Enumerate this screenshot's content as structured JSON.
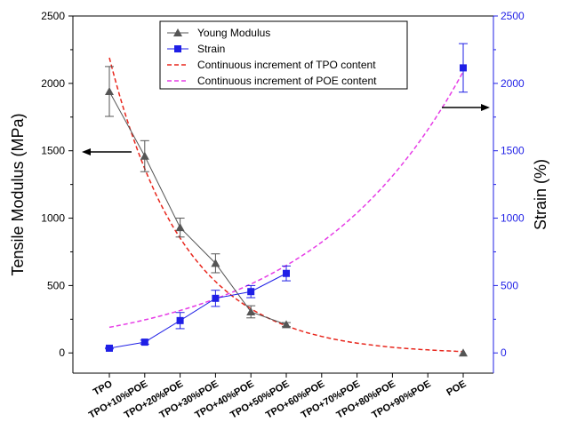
{
  "chart_data": {
    "type": "line",
    "categories": [
      "TPO",
      "TPO+10%POE",
      "TPO+20%POE",
      "TPO+30%POE",
      "TPO+40%POE",
      "TPO+50%POE",
      "TPO+60%POE",
      "TPO+70%POE",
      "TPO+80%POE",
      "TPO+90%POE",
      "POE"
    ],
    "ylabel_left": "Tensile Modulus (MPa)",
    "ylabel_right": "Strain (%)",
    "ylim_left": [
      -150,
      2500
    ],
    "ylim_right": [
      -150,
      2500
    ],
    "left_ticks": [
      0,
      500,
      1000,
      1500,
      2000,
      2500
    ],
    "right_ticks": [
      0,
      500,
      1000,
      1500,
      2000,
      2500
    ],
    "legend_position": "top-center",
    "grid": false,
    "series": [
      {
        "name": "Young Modulus",
        "axis": "left",
        "color": "#555555",
        "marker": "triangle",
        "points": [
          {
            "cat": 0,
            "y": 1940,
            "err": 185
          },
          {
            "cat": 1,
            "y": 1460,
            "err": 115
          },
          {
            "cat": 2,
            "y": 930,
            "err": 70
          },
          {
            "cat": 3,
            "y": 665,
            "err": 70
          },
          {
            "cat": 4,
            "y": 305,
            "err": 45
          },
          {
            "cat": 5,
            "y": 210,
            "err": 15
          },
          {
            "cat": 10,
            "y": 0,
            "err": 0
          }
        ]
      },
      {
        "name": "Strain",
        "axis": "right",
        "color": "#1f1fe6",
        "marker": "square",
        "points": [
          {
            "cat": 0,
            "y": 35,
            "err": 5
          },
          {
            "cat": 1,
            "y": 80,
            "err": 15
          },
          {
            "cat": 2,
            "y": 240,
            "err": 60
          },
          {
            "cat": 3,
            "y": 405,
            "err": 60
          },
          {
            "cat": 4,
            "y": 455,
            "err": 45
          },
          {
            "cat": 5,
            "y": 590,
            "err": 55
          },
          {
            "cat": 10,
            "y": 2115,
            "err": 180
          }
        ]
      },
      {
        "name": "Continuous increment of TPO content",
        "axis": "left",
        "color": "#e8261c",
        "style": "dashed",
        "curve": "decay"
      },
      {
        "name": "Continuous increment of POE content",
        "axis": "right",
        "color": "#e63ce6",
        "style": "dashed",
        "curve": "growth"
      }
    ],
    "annotations": [
      {
        "type": "arrow",
        "direction": "left",
        "meaning": "modulus refers to left axis"
      },
      {
        "type": "arrow",
        "direction": "right",
        "meaning": "strain refers to right axis"
      }
    ]
  },
  "colors": {
    "left_axis": "#000000",
    "right_axis": "#1f1fe6"
  }
}
